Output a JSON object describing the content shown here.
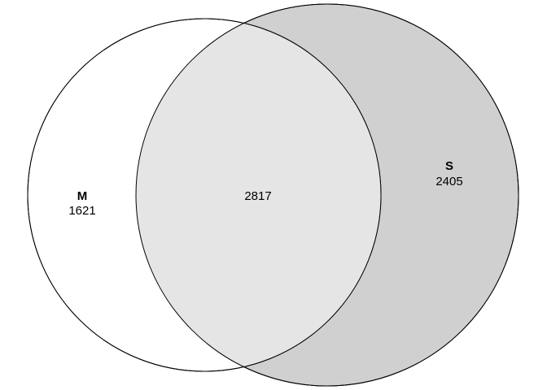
{
  "diagram": {
    "type": "venn",
    "sets": [
      {
        "id": "M",
        "label": "M",
        "only_count": "1621",
        "fill": "#ffffff",
        "stroke": "#000000"
      },
      {
        "id": "S",
        "label": "S",
        "only_count": "2405",
        "fill": "#d0d0d0",
        "stroke": "#000000"
      }
    ],
    "intersection": {
      "sets": [
        "M",
        "S"
      ],
      "count": "2817",
      "fill": "#e5e5e5"
    }
  }
}
